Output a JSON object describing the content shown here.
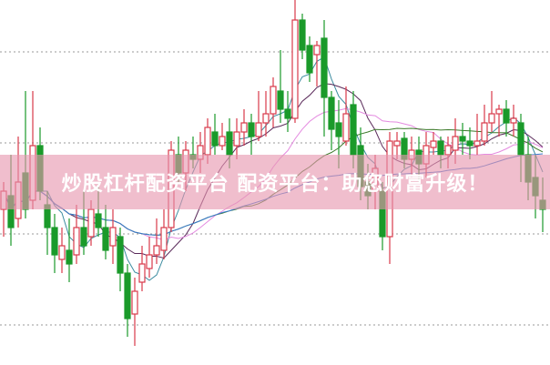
{
  "banner": {
    "text": "炒股杠杆配资平台 配资平台：助您财富升级！"
  },
  "chart_data": {
    "type": "candlestick",
    "title": "",
    "grid": true,
    "colors": {
      "up": "#d8394a",
      "down": "#1a9a2a",
      "ma5": "#3c8ca0",
      "ma10": "#5a2a5a",
      "ma20": "#e48ae0",
      "ma30": "#3c7a2a",
      "ma60": "#3a7ad0",
      "grid": "#999999"
    },
    "candles": [
      [
        170,
        190,
        200,
        140
      ],
      [
        185,
        150,
        230,
        130
      ],
      [
        160,
        200,
        250,
        150
      ],
      [
        210,
        170,
        300,
        160
      ],
      [
        180,
        240,
        300,
        170
      ],
      [
        240,
        190,
        260,
        180
      ],
      [
        175,
        150,
        190,
        120
      ],
      [
        150,
        120,
        165,
        100
      ],
      [
        115,
        130,
        150,
        100
      ],
      [
        125,
        110,
        160,
        90
      ],
      [
        120,
        150,
        175,
        110
      ],
      [
        150,
        130,
        190,
        120
      ],
      [
        140,
        170,
        180,
        130
      ],
      [
        165,
        150,
        200,
        140
      ],
      [
        150,
        125,
        175,
        115
      ],
      [
        130,
        150,
        170,
        110
      ],
      [
        140,
        100,
        150,
        80
      ],
      [
        100,
        50,
        110,
        30
      ],
      [
        55,
        80,
        95,
        20
      ],
      [
        90,
        110,
        130,
        80
      ],
      [
        105,
        120,
        140,
        95
      ],
      [
        120,
        130,
        160,
        110
      ],
      [
        125,
        150,
        170,
        115
      ],
      [
        150,
        235,
        245,
        145
      ],
      [
        230,
        210,
        250,
        200
      ],
      [
        210,
        235,
        245,
        190
      ],
      [
        230,
        225,
        250,
        215
      ],
      [
        225,
        240,
        255,
        210
      ],
      [
        230,
        260,
        270,
        220
      ],
      [
        255,
        240,
        275,
        230
      ],
      [
        240,
        250,
        265,
        235
      ],
      [
        255,
        230,
        270,
        215
      ],
      [
        240,
        255,
        270,
        225
      ],
      [
        255,
        265,
        280,
        240
      ],
      [
        265,
        250,
        275,
        230
      ],
      [
        250,
        265,
        300,
        245
      ],
      [
        265,
        275,
        300,
        250
      ],
      [
        275,
        305,
        315,
        260
      ],
      [
        300,
        280,
        345,
        265
      ],
      [
        280,
        270,
        300,
        255
      ],
      [
        270,
        378,
        400,
        265
      ],
      [
        378,
        345,
        385,
        335
      ],
      [
        350,
        320,
        360,
        310
      ],
      [
        340,
        350,
        355,
        305
      ],
      [
        358,
        293,
        378,
        250
      ],
      [
        293,
        258,
        300,
        235
      ],
      [
        265,
        250,
        290,
        215
      ],
      [
        245,
        275,
        305,
        240
      ],
      [
        285,
        230,
        300,
        215
      ],
      [
        240,
        195,
        260,
        180
      ],
      [
        200,
        185,
        220,
        170
      ],
      [
        190,
        215,
        230,
        170
      ],
      [
        190,
        140,
        200,
        125
      ],
      [
        140,
        245,
        255,
        110
      ],
      [
        240,
        245,
        255,
        225
      ],
      [
        248,
        225,
        255,
        215
      ],
      [
        225,
        235,
        250,
        205
      ],
      [
        235,
        220,
        250,
        200
      ],
      [
        220,
        240,
        255,
        205
      ],
      [
        238,
        245,
        255,
        230
      ],
      [
        245,
        230,
        250,
        215
      ],
      [
        230,
        240,
        250,
        215
      ],
      [
        235,
        250,
        270,
        220
      ],
      [
        250,
        245,
        265,
        230
      ],
      [
        245,
        240,
        260,
        225
      ],
      [
        240,
        245,
        275,
        230
      ],
      [
        245,
        265,
        285,
        240
      ],
      [
        265,
        275,
        300,
        255
      ],
      [
        275,
        280,
        285,
        250
      ],
      [
        280,
        265,
        290,
        250
      ],
      [
        265,
        270,
        285,
        250
      ],
      [
        265,
        230,
        275,
        200
      ],
      [
        230,
        200,
        250,
        180
      ],
      [
        205,
        185,
        230,
        160
      ],
      [
        180,
        170,
        205,
        145
      ]
    ],
    "candle_fields": [
      "open",
      "close",
      "high",
      "low"
    ],
    "moving_averages": [
      5,
      10,
      20,
      30,
      60
    ]
  }
}
